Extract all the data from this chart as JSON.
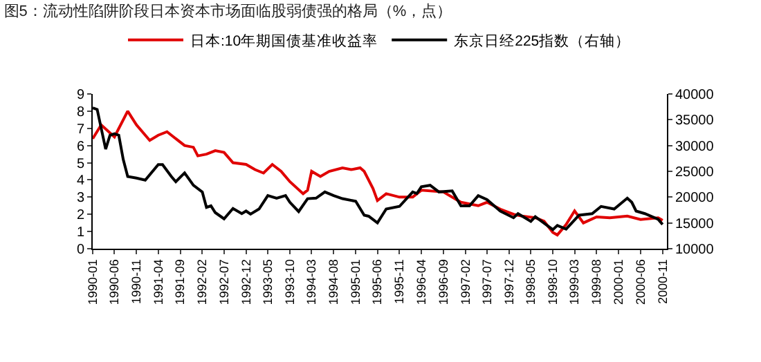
{
  "chart_data": {
    "type": "line",
    "title": "图5：流动性陷阱阶段日本资本市场面临股弱债强的格局（%，点）",
    "xlim": [
      "1990-01",
      "2000-12"
    ],
    "xticks": [
      "1990-01",
      "1990-06",
      "1990-11",
      "1991-04",
      "1991-09",
      "1992-02",
      "1992-07",
      "1992-12",
      "1993-05",
      "1993-10",
      "1994-03",
      "1994-08",
      "1995-01",
      "1995-06",
      "1995-11",
      "1996-04",
      "1996-09",
      "1997-02",
      "1997-07",
      "1997-12",
      "1998-05",
      "1998-10",
      "1999-03",
      "1999-08",
      "2000-01",
      "2000-06",
      "2000-11"
    ],
    "ylim": [
      0,
      9
    ],
    "yticks": [
      0,
      1,
      2,
      3,
      4,
      5,
      6,
      7,
      8,
      9
    ],
    "y2lim": [
      10000,
      40000
    ],
    "y2ticks": [
      10000,
      15000,
      20000,
      25000,
      30000,
      35000,
      40000
    ],
    "grid": false,
    "legend": "top",
    "marker": "none",
    "line_style": "solid",
    "series": [
      {
        "name": "日本:10年期国债基准收益率",
        "color": "#e00000",
        "x": [
          "1990-01",
          "1990-03",
          "1990-06",
          "1990-09",
          "1990-11",
          "1991-02",
          "1991-04",
          "1991-06",
          "1991-10",
          "1991-12",
          "1992-01",
          "1992-03",
          "1992-05",
          "1992-07",
          "1992-09",
          "1992-12",
          "1993-02",
          "1993-04",
          "1993-06",
          "1993-08",
          "1993-10",
          "1994-01",
          "1994-02",
          "1994-03",
          "1994-05",
          "1994-07",
          "1994-10",
          "1994-12",
          "1995-02",
          "1995-03",
          "1995-05",
          "1995-06",
          "1995-08",
          "1995-11",
          "1996-02",
          "1996-04",
          "1996-09",
          "1997-01",
          "1997-05",
          "1997-07",
          "1997-10",
          "1998-01",
          "1998-03",
          "1998-06",
          "1998-08",
          "1998-10",
          "1998-11",
          "1999-01",
          "1999-03",
          "1999-05",
          "1999-08",
          "1999-11",
          "2000-03",
          "2000-06",
          "2000-10",
          "2000-11"
        ],
        "values": [
          6.4,
          7.2,
          6.5,
          8.0,
          7.2,
          6.3,
          6.6,
          6.8,
          6.0,
          5.9,
          5.4,
          5.5,
          5.7,
          5.6,
          5.0,
          4.9,
          4.6,
          4.4,
          4.9,
          4.5,
          3.9,
          3.2,
          3.4,
          4.5,
          4.2,
          4.5,
          4.7,
          4.6,
          4.7,
          4.5,
          3.5,
          2.8,
          3.2,
          3.0,
          3.0,
          3.4,
          3.3,
          2.7,
          2.5,
          2.7,
          2.3,
          2.0,
          1.9,
          1.8,
          1.6,
          0.95,
          0.8,
          1.4,
          2.2,
          1.5,
          1.85,
          1.8,
          1.9,
          1.7,
          1.8,
          1.65
        ]
      },
      {
        "name": "东京日经225指数（右轴）",
        "color": "#000000",
        "axis": "y2",
        "x": [
          "1990-01",
          "1990-02",
          "1990-04",
          "1990-05",
          "1990-06",
          "1990-07",
          "1990-08",
          "1990-09",
          "1990-11",
          "1991-01",
          "1991-04",
          "1991-05",
          "1991-07",
          "1991-08",
          "1991-10",
          "1991-12",
          "1992-02",
          "1992-03",
          "1992-04",
          "1992-05",
          "1992-07",
          "1992-09",
          "1992-11",
          "1992-12",
          "1993-01",
          "1993-03",
          "1993-05",
          "1993-07",
          "1993-09",
          "1993-10",
          "1993-12",
          "1994-02",
          "1994-04",
          "1994-06",
          "1994-08",
          "1994-10",
          "1995-01",
          "1995-03",
          "1995-04",
          "1995-06",
          "1995-08",
          "1995-11",
          "1996-02",
          "1996-03",
          "1996-04",
          "1996-06",
          "1996-08",
          "1996-11",
          "1997-01",
          "1997-03",
          "1997-05",
          "1997-07",
          "1997-10",
          "1998-01",
          "1998-02",
          "1998-05",
          "1998-06",
          "1998-10",
          "1998-11",
          "1999-01",
          "1999-04",
          "1999-07",
          "1999-09",
          "1999-12",
          "2000-03",
          "2000-04",
          "2000-05",
          "2000-07",
          "2000-10",
          "2000-11"
        ],
        "values": [
          37300,
          37000,
          29300,
          32000,
          32300,
          32000,
          27300,
          24000,
          23700,
          23300,
          26300,
          26300,
          24000,
          23000,
          24700,
          22300,
          21000,
          18000,
          18300,
          17000,
          15800,
          17800,
          16800,
          17300,
          16700,
          17700,
          20300,
          19800,
          20300,
          19000,
          17200,
          19700,
          19800,
          21000,
          20300,
          19700,
          19200,
          16500,
          16300,
          15000,
          17700,
          18200,
          21000,
          20700,
          22000,
          22300,
          21000,
          21200,
          18300,
          18300,
          20300,
          19500,
          17300,
          16000,
          16800,
          15300,
          16200,
          13700,
          14500,
          13800,
          16500,
          16800,
          18200,
          17700,
          19800,
          19000,
          17300,
          16800,
          15700,
          14700
        ]
      }
    ]
  }
}
